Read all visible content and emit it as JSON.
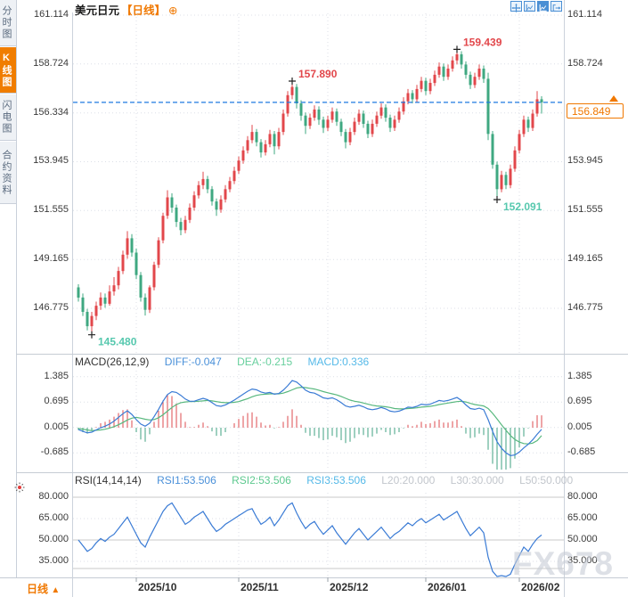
{
  "header": {
    "symbol": "美元日元",
    "period_tag": "【日线】",
    "plus_icon": "⊕"
  },
  "toolbar": {
    "crosshair_label": "crosshair-tool",
    "scale_label": "scale-tool",
    "scale_active_label": "scale-tool-active",
    "exit_label": "exit-chart"
  },
  "sidebar": {
    "tabs": [
      {
        "label": "分时图",
        "active": false
      },
      {
        "label": "K线图",
        "active": true
      },
      {
        "label": "闪电图",
        "active": false
      },
      {
        "label": "合约资料",
        "active": false
      }
    ]
  },
  "bottom_bar": {
    "period_label": "日线",
    "arrow": "▲"
  },
  "watermark": "FX678",
  "price_tag": {
    "value": "156.849"
  },
  "colors": {
    "up_candle": "#e2474b",
    "down_candle": "#3fa881",
    "accent_orange": "#f07800",
    "dashed_line_blue": "#1f7ae0",
    "diff_blue": "#3a7bd5",
    "dea_green": "#58b87e",
    "hist_pos": "#dd4b4f",
    "hist_neg": "#3fa080",
    "rsi_blue": "#3a7bd5",
    "annotation_red": "#e2474b",
    "annotation_teal": "#56c8ae"
  },
  "chart_data": {
    "type": "candlestick",
    "title": "美元日元 日线 (USD/JPY daily with MACD and RSI)",
    "legend_position": "top-left",
    "grid": true,
    "price_axis_ticks": [
      "161.114",
      "158.724",
      "156.334",
      "153.945",
      "151.555",
      "149.165",
      "146.775"
    ],
    "macd_axis_ticks": [
      "1.385",
      "0.695",
      "0.005",
      "-0.685"
    ],
    "rsi_axis_ticks": [
      "80.000",
      "65.000",
      "50.000",
      "35.000"
    ],
    "x_axis_labels": [
      {
        "label": "2025/10",
        "i": 13
      },
      {
        "label": "2025/11",
        "i": 36
      },
      {
        "label": "2025/12",
        "i": 56
      },
      {
        "label": "2026/01",
        "i": 78
      },
      {
        "label": "2026/02",
        "i": 99
      }
    ],
    "current_price": 156.849,
    "annotations": [
      {
        "text": "157.890",
        "i": 48,
        "price": 157.89,
        "color": "#e2474b",
        "placement": "above"
      },
      {
        "text": "159.439",
        "i": 85,
        "price": 159.439,
        "color": "#e2474b",
        "placement": "above"
      },
      {
        "text": "145.480",
        "i": 3,
        "price": 145.48,
        "color": "#56c8ae",
        "placement": "below"
      },
      {
        "text": "152.091",
        "i": 94,
        "price": 152.091,
        "color": "#56c8ae",
        "placement": "below"
      }
    ],
    "candles_format": [
      "open",
      "high",
      "low",
      "close"
    ],
    "candles": [
      [
        147.8,
        147.95,
        147.1,
        147.3
      ],
      [
        147.3,
        147.5,
        146.4,
        146.6
      ],
      [
        146.6,
        146.75,
        145.7,
        145.9
      ],
      [
        145.9,
        146.6,
        145.48,
        146.4
      ],
      [
        146.4,
        147.1,
        146.2,
        146.9
      ],
      [
        146.9,
        147.55,
        146.7,
        147.3
      ],
      [
        147.3,
        147.5,
        146.8,
        147.0
      ],
      [
        147.0,
        147.9,
        146.9,
        147.6
      ],
      [
        147.6,
        148.3,
        147.4,
        147.9
      ],
      [
        147.9,
        148.8,
        147.7,
        148.6
      ],
      [
        148.6,
        149.6,
        148.45,
        149.4
      ],
      [
        149.4,
        150.55,
        149.2,
        150.2
      ],
      [
        150.2,
        150.4,
        149.3,
        149.5
      ],
      [
        149.5,
        149.7,
        148.2,
        148.4
      ],
      [
        148.4,
        148.55,
        147.1,
        147.3
      ],
      [
        147.3,
        147.5,
        146.42,
        146.7
      ],
      [
        146.7,
        147.9,
        146.55,
        147.8
      ],
      [
        147.8,
        149.05,
        147.65,
        148.9
      ],
      [
        148.9,
        150.25,
        148.75,
        150.1
      ],
      [
        150.1,
        151.45,
        149.95,
        151.3
      ],
      [
        151.3,
        152.55,
        151.15,
        152.2
      ],
      [
        152.2,
        152.4,
        151.45,
        151.7
      ],
      [
        151.7,
        151.85,
        150.75,
        151.0
      ],
      [
        151.0,
        151.2,
        150.35,
        150.6
      ],
      [
        150.6,
        151.3,
        150.45,
        151.1
      ],
      [
        151.1,
        151.9,
        150.95,
        151.7
      ],
      [
        151.7,
        152.5,
        151.55,
        152.3
      ],
      [
        152.3,
        153.0,
        152.15,
        152.8
      ],
      [
        152.8,
        153.45,
        152.6,
        153.1
      ],
      [
        153.1,
        153.25,
        152.4,
        152.6
      ],
      [
        152.6,
        152.75,
        151.8,
        152.0
      ],
      [
        152.0,
        152.15,
        151.3,
        151.6
      ],
      [
        151.6,
        152.3,
        151.45,
        152.1
      ],
      [
        152.1,
        152.8,
        151.95,
        152.6
      ],
      [
        152.6,
        153.2,
        152.45,
        153.0
      ],
      [
        153.0,
        153.7,
        152.85,
        153.5
      ],
      [
        153.5,
        154.2,
        153.35,
        154.0
      ],
      [
        154.0,
        154.7,
        153.85,
        154.5
      ],
      [
        154.5,
        155.2,
        154.35,
        155.0
      ],
      [
        155.0,
        155.75,
        154.85,
        155.4
      ],
      [
        155.4,
        155.55,
        154.7,
        154.9
      ],
      [
        154.9,
        155.05,
        154.15,
        154.4
      ],
      [
        154.4,
        155.0,
        154.25,
        154.8
      ],
      [
        154.8,
        155.5,
        154.65,
        155.3
      ],
      [
        155.3,
        155.45,
        154.3,
        154.7
      ],
      [
        154.7,
        155.6,
        154.55,
        155.4
      ],
      [
        155.4,
        156.5,
        155.25,
        156.3
      ],
      [
        156.3,
        157.4,
        156.15,
        157.2
      ],
      [
        157.2,
        157.89,
        157.0,
        157.6
      ],
      [
        157.6,
        157.75,
        156.55,
        156.8
      ],
      [
        156.8,
        156.95,
        155.95,
        156.2
      ],
      [
        156.2,
        156.35,
        155.3,
        155.7
      ],
      [
        155.7,
        156.3,
        155.55,
        156.1
      ],
      [
        156.1,
        156.7,
        155.95,
        156.5
      ],
      [
        156.5,
        156.65,
        155.75,
        156.0
      ],
      [
        156.0,
        156.15,
        155.35,
        155.6
      ],
      [
        155.6,
        156.2,
        155.45,
        156.0
      ],
      [
        156.0,
        156.6,
        155.85,
        156.4
      ],
      [
        156.4,
        156.55,
        155.7,
        155.9
      ],
      [
        155.9,
        156.05,
        155.2,
        155.4
      ],
      [
        155.4,
        155.55,
        154.6,
        154.9
      ],
      [
        154.9,
        155.6,
        154.75,
        155.4
      ],
      [
        155.4,
        156.1,
        155.25,
        155.9
      ],
      [
        155.9,
        156.5,
        155.75,
        156.3
      ],
      [
        156.3,
        156.45,
        155.6,
        155.8
      ],
      [
        155.8,
        155.95,
        155.1,
        155.3
      ],
      [
        155.3,
        156.0,
        155.15,
        155.8
      ],
      [
        155.8,
        156.4,
        155.65,
        156.2
      ],
      [
        156.2,
        156.8,
        156.05,
        156.6
      ],
      [
        156.6,
        156.75,
        155.9,
        156.1
      ],
      [
        156.1,
        156.25,
        155.4,
        155.6
      ],
      [
        155.6,
        156.2,
        155.45,
        156.0
      ],
      [
        156.0,
        156.6,
        155.85,
        156.4
      ],
      [
        156.4,
        157.1,
        156.25,
        156.9
      ],
      [
        156.9,
        157.5,
        156.75,
        157.3
      ],
      [
        157.3,
        157.45,
        156.8,
        157.0
      ],
      [
        157.0,
        157.7,
        156.85,
        157.5
      ],
      [
        157.5,
        158.1,
        157.35,
        157.9
      ],
      [
        157.9,
        158.05,
        157.2,
        157.4
      ],
      [
        157.4,
        158.0,
        157.25,
        157.8
      ],
      [
        157.8,
        158.4,
        157.65,
        158.2
      ],
      [
        158.2,
        158.8,
        158.05,
        158.6
      ],
      [
        158.6,
        158.75,
        157.9,
        158.1
      ],
      [
        158.1,
        158.7,
        157.95,
        158.5
      ],
      [
        158.5,
        159.1,
        158.35,
        158.9
      ],
      [
        158.9,
        159.439,
        158.7,
        159.2
      ],
      [
        159.2,
        159.35,
        158.5,
        158.7
      ],
      [
        158.7,
        158.85,
        158.0,
        158.2
      ],
      [
        158.2,
        158.35,
        157.5,
        157.7
      ],
      [
        157.7,
        158.3,
        157.55,
        158.1
      ],
      [
        158.1,
        158.7,
        157.95,
        158.5
      ],
      [
        158.5,
        158.65,
        157.8,
        158.0
      ],
      [
        158.0,
        158.3,
        155.0,
        155.3
      ],
      [
        155.3,
        155.45,
        153.6,
        153.8
      ],
      [
        153.8,
        153.95,
        152.091,
        152.6
      ],
      [
        152.6,
        153.5,
        152.45,
        153.3
      ],
      [
        153.3,
        153.45,
        152.6,
        152.8
      ],
      [
        152.8,
        153.8,
        152.65,
        153.6
      ],
      [
        153.6,
        154.7,
        153.45,
        154.5
      ],
      [
        154.5,
        155.5,
        154.35,
        155.3
      ],
      [
        155.3,
        156.2,
        155.15,
        156.0
      ],
      [
        156.0,
        156.15,
        155.4,
        155.6
      ],
      [
        155.6,
        156.5,
        155.45,
        156.3
      ],
      [
        156.3,
        157.4,
        156.15,
        157.0
      ],
      [
        157.0,
        157.15,
        156.3,
        156.849
      ]
    ],
    "macd": {
      "name": "MACD(26,12,9)",
      "diff_label": "DIFF:-0.047",
      "dea_label": "DEA:-0.215",
      "macd_label": "MACD:0.336",
      "diff": [
        -0.05,
        -0.1,
        -0.14,
        -0.12,
        -0.06,
        0.0,
        0.04,
        0.1,
        0.18,
        0.28,
        0.38,
        0.46,
        0.36,
        0.22,
        0.1,
        0.04,
        0.12,
        0.3,
        0.5,
        0.72,
        0.9,
        0.98,
        0.96,
        0.88,
        0.78,
        0.72,
        0.72,
        0.76,
        0.8,
        0.76,
        0.68,
        0.6,
        0.58,
        0.62,
        0.68,
        0.75,
        0.83,
        0.91,
        0.99,
        1.05,
        1.03,
        0.97,
        0.94,
        0.96,
        0.91,
        0.93,
        1.02,
        1.14,
        1.28,
        1.24,
        1.14,
        1.02,
        0.96,
        0.94,
        0.88,
        0.81,
        0.79,
        0.81,
        0.76,
        0.68,
        0.59,
        0.56,
        0.58,
        0.61,
        0.57,
        0.51,
        0.49,
        0.51,
        0.55,
        0.51,
        0.45,
        0.43,
        0.45,
        0.5,
        0.56,
        0.55,
        0.58,
        0.64,
        0.62,
        0.64,
        0.69,
        0.74,
        0.72,
        0.74,
        0.78,
        0.82,
        0.74,
        0.62,
        0.52,
        0.5,
        0.53,
        0.49,
        0.22,
        -0.1,
        -0.38,
        -0.56,
        -0.68,
        -0.76,
        -0.74,
        -0.66,
        -0.55,
        -0.45,
        -0.33,
        -0.18,
        -0.047
      ],
      "dea": [
        -0.02,
        -0.04,
        -0.06,
        -0.08,
        -0.07,
        -0.06,
        -0.04,
        -0.01,
        0.03,
        0.08,
        0.14,
        0.21,
        0.26,
        0.28,
        0.26,
        0.23,
        0.21,
        0.22,
        0.27,
        0.35,
        0.45,
        0.55,
        0.63,
        0.68,
        0.7,
        0.71,
        0.71,
        0.72,
        0.73,
        0.74,
        0.73,
        0.71,
        0.69,
        0.68,
        0.68,
        0.69,
        0.71,
        0.75,
        0.79,
        0.84,
        0.88,
        0.9,
        0.91,
        0.92,
        0.92,
        0.92,
        0.94,
        0.98,
        1.03,
        1.08,
        1.1,
        1.09,
        1.07,
        1.05,
        1.02,
        0.98,
        0.95,
        0.92,
        0.89,
        0.85,
        0.8,
        0.75,
        0.72,
        0.7,
        0.67,
        0.64,
        0.61,
        0.59,
        0.58,
        0.57,
        0.55,
        0.52,
        0.51,
        0.51,
        0.52,
        0.53,
        0.54,
        0.56,
        0.57,
        0.58,
        0.6,
        0.63,
        0.65,
        0.67,
        0.69,
        0.71,
        0.72,
        0.7,
        0.66,
        0.63,
        0.61,
        0.59,
        0.52,
        0.39,
        0.24,
        0.08,
        -0.07,
        -0.21,
        -0.32,
        -0.39,
        -0.43,
        -0.44,
        -0.42,
        -0.35,
        -0.215
      ]
    },
    "rsi": {
      "name": "RSI(14,14,14)",
      "rsi1_label": "RSI1:53.506",
      "rsi2_label": "RSI2:53.506",
      "rsi3_label": "RSI3:53.506",
      "l20_label": "L20:20.000",
      "l30_label": "L30:30.000",
      "l50_label": "L50:50.000",
      "solid_levels": [
        80,
        50,
        30
      ],
      "values": [
        50,
        46,
        42,
        44,
        48,
        51,
        49,
        52,
        54,
        58,
        62,
        66,
        60,
        54,
        48,
        45,
        52,
        58,
        64,
        70,
        74,
        76,
        71,
        66,
        61,
        63,
        66,
        68,
        70,
        65,
        60,
        56,
        58,
        61,
        63,
        65,
        67,
        69,
        71,
        72,
        66,
        61,
        63,
        66,
        60,
        64,
        69,
        74,
        76,
        69,
        63,
        58,
        61,
        63,
        58,
        54,
        57,
        60,
        55,
        51,
        47,
        51,
        55,
        58,
        54,
        50,
        53,
        56,
        59,
        55,
        51,
        54,
        56,
        59,
        62,
        60,
        63,
        65,
        62,
        64,
        66,
        68,
        64,
        66,
        68,
        70,
        64,
        58,
        53,
        56,
        59,
        55,
        38,
        28,
        22,
        25,
        20,
        26,
        33,
        39,
        45,
        42,
        47,
        51,
        53.5
      ]
    }
  }
}
